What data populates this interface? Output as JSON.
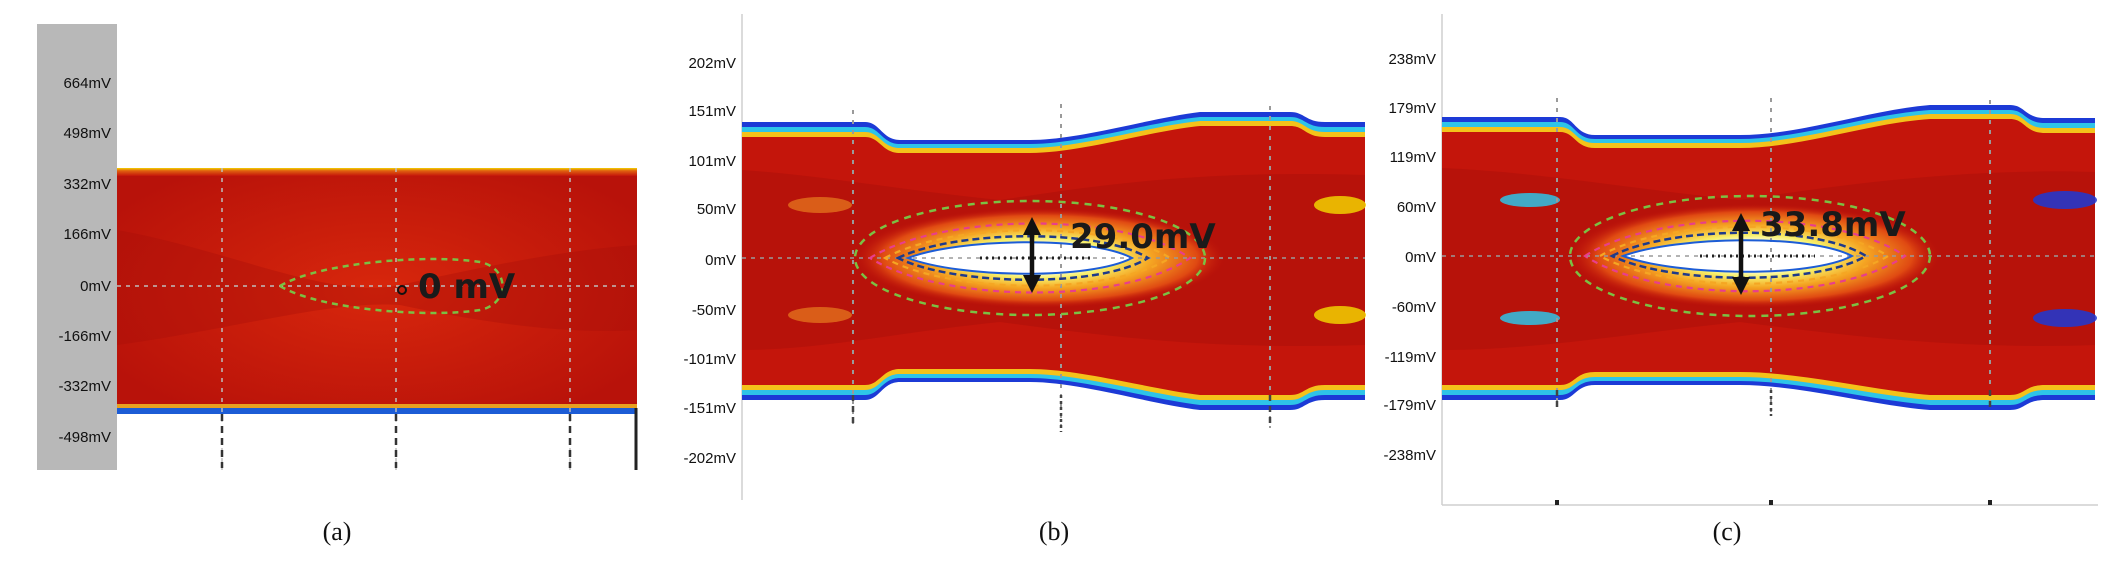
{
  "figure": {
    "panels": [
      {
        "caption": "(a)",
        "annotation": "0 mV",
        "ytick_labels": [
          "664mV",
          "498mV",
          "332mV",
          "166mV",
          "0mV",
          "-166mV",
          "-332mV",
          "-498mV"
        ]
      },
      {
        "caption": "(b)",
        "annotation": "29.0mV",
        "ytick_labels": [
          "202mV",
          "151mV",
          "101mV",
          "50mV",
          "0mV",
          "-50mV",
          "-101mV",
          "-151mV",
          "-202mV"
        ]
      },
      {
        "caption": "(c)",
        "annotation": "33.8mV",
        "ytick_labels": [
          "238mV",
          "179mV",
          "119mV",
          "60mV",
          "0mV",
          "-60mV",
          "-119mV",
          "-179mV",
          "-238mV"
        ]
      }
    ]
  },
  "chart_data": [
    {
      "type": "heatmap",
      "title": "",
      "xlabel": "",
      "ylabel": "",
      "y_ticks_mV": [
        664,
        498,
        332,
        166,
        0,
        -166,
        -332,
        -498
      ],
      "eye_height_mV": 0,
      "signal_band_mV": [
        -525,
        415
      ],
      "eye_opening_mV": [
        0,
        0
      ],
      "colors": {
        "background": "#c4150b",
        "eye_contour": "#7bc043"
      }
    },
    {
      "type": "heatmap",
      "title": "",
      "xlabel": "",
      "ylabel": "",
      "y_ticks_mV": [
        202,
        151,
        101,
        50,
        0,
        -50,
        -101,
        -151,
        -202
      ],
      "eye_height_mV": 29.0,
      "signal_band_mV": [
        -140,
        140
      ],
      "eye_opening_mV": [
        -15,
        15
      ],
      "colors": {
        "background": "#c4150b",
        "eye_contour": "#7bc043",
        "inner_contours": [
          "#e83e8c",
          "#f5a623",
          "#1e3a8a",
          "#22c3e6"
        ]
      }
    },
    {
      "type": "heatmap",
      "title": "",
      "xlabel": "",
      "ylabel": "",
      "y_ticks_mV": [
        238,
        179,
        119,
        60,
        0,
        -60,
        -119,
        -179,
        -238
      ],
      "eye_height_mV": 33.8,
      "signal_band_mV": [
        -170,
        165
      ],
      "eye_opening_mV": [
        -17,
        17
      ],
      "colors": {
        "background": "#c4150b",
        "eye_contour": "#7bc043",
        "inner_contours": [
          "#e83e8c",
          "#f5a623",
          "#1e3a8a",
          "#22c3e6"
        ]
      }
    }
  ]
}
